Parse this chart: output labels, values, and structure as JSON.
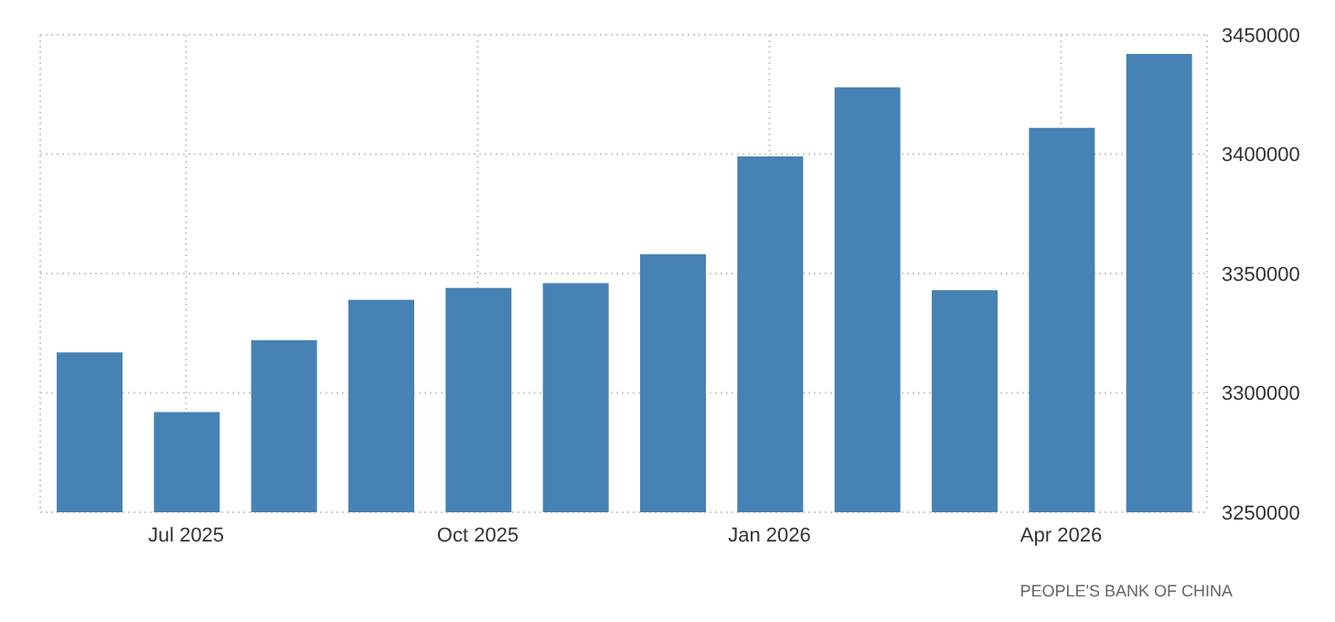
{
  "chart_data": {
    "type": "bar",
    "categories": [
      null,
      "Jul 2025",
      null,
      null,
      "Oct 2025",
      null,
      null,
      "Jan 2026",
      null,
      null,
      "Apr 2026",
      null
    ],
    "values": [
      3317000,
      3292000,
      3322000,
      3339000,
      3344000,
      3346000,
      3358000,
      3399000,
      3428000,
      3343000,
      3411000,
      3442000
    ],
    "color": "#4682b4",
    "ylim": [
      3250000,
      3450000
    ],
    "yticks": [
      3250000,
      3300000,
      3350000,
      3400000,
      3450000
    ],
    "grid": true,
    "annotations": [
      "PEOPLE'S BANK OF CHINA"
    ]
  }
}
